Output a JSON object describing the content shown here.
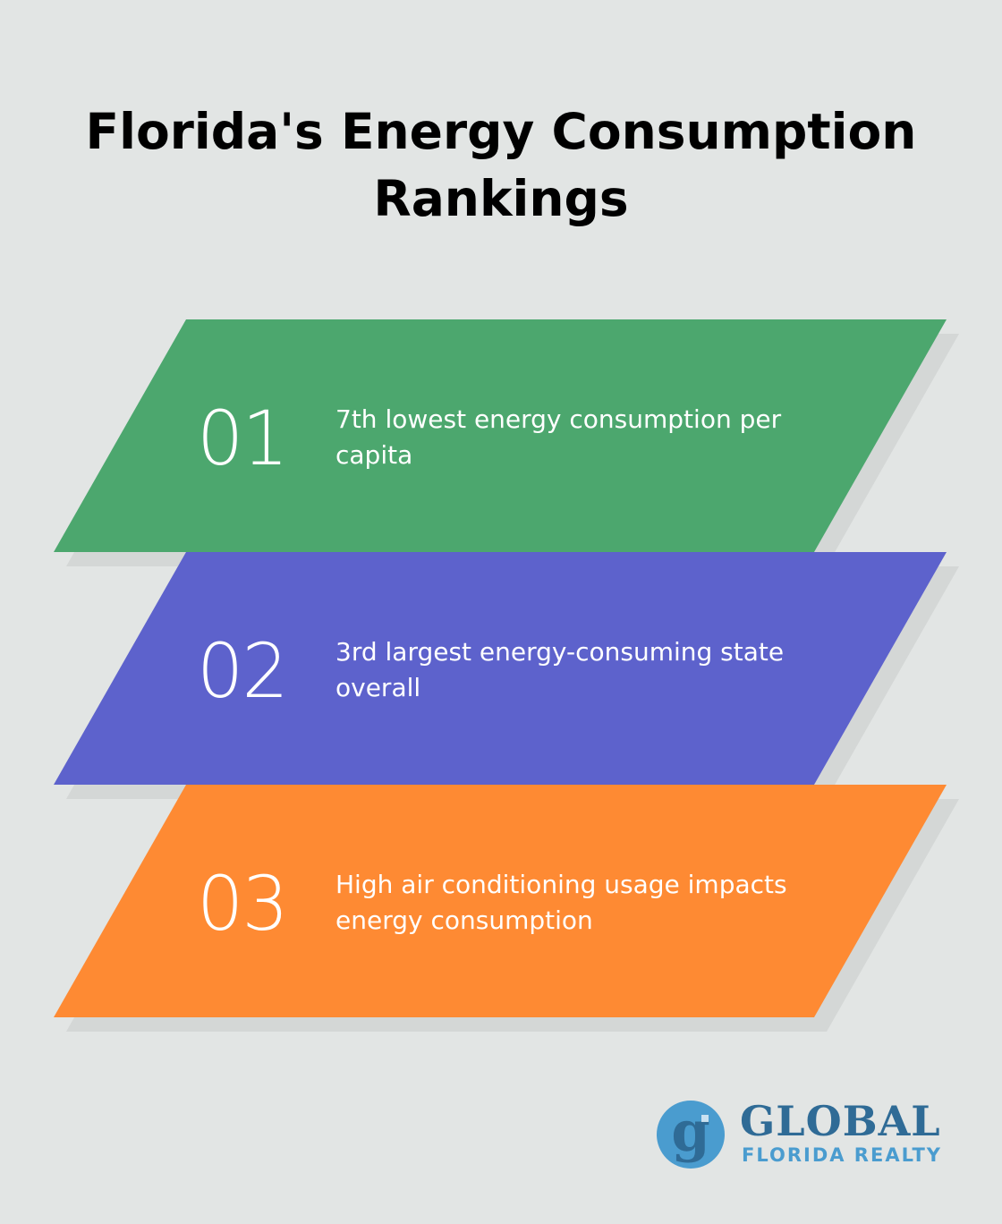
{
  "title": {
    "line1": "Florida's Energy Consumption",
    "line2": "Rankings"
  },
  "items": [
    {
      "number": "01",
      "text": "7th lowest energy consumption per capita",
      "color": "#4ca76e"
    },
    {
      "number": "02",
      "text": "3rd largest energy-consuming state overall",
      "color": "#5d62cc"
    },
    {
      "number": "03",
      "text": "High air conditioning usage impacts energy consumption",
      "color": "#fe8a33"
    }
  ],
  "logo": {
    "name": "GLOBAL",
    "tagline": "FLORIDA REALTY",
    "icon": "g-monogram-icon",
    "primary_color": "#2f6b96",
    "secondary_color": "#4a9ccf"
  }
}
